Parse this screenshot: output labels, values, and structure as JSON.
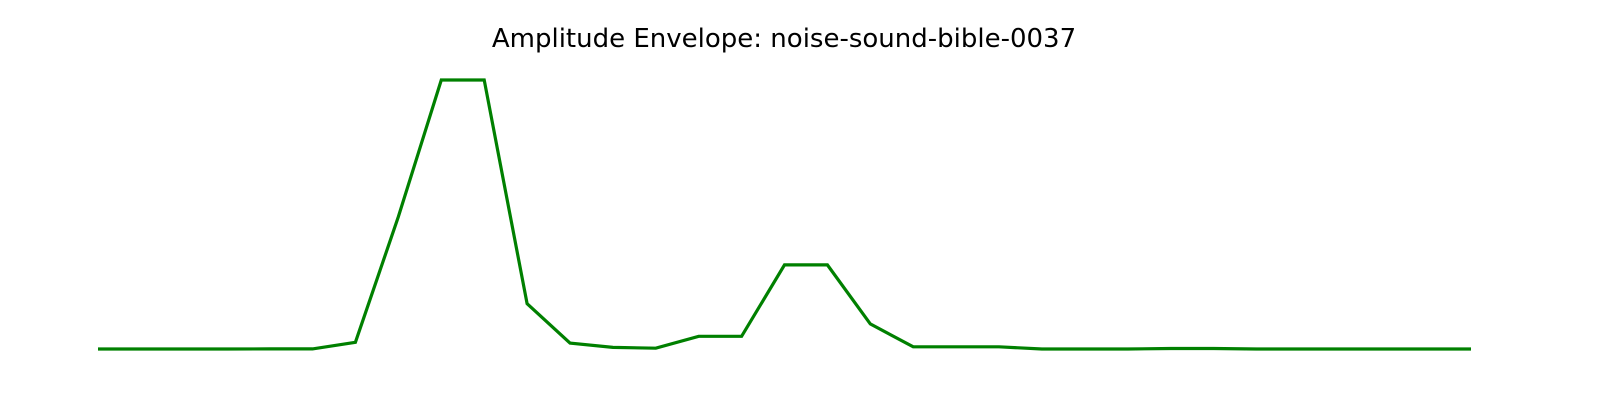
{
  "chart_data": {
    "type": "line",
    "title": "Amplitude Envelope: noise-sound-bible-0037",
    "xlabel": "",
    "ylabel": "",
    "grid": false,
    "axes_visible": false,
    "line_color": "#008000",
    "x": [
      0,
      1,
      2,
      3,
      4,
      5,
      6,
      7,
      8,
      9,
      10,
      11,
      12,
      13,
      14,
      15,
      16,
      17,
      18,
      19,
      20,
      21,
      22,
      23,
      24,
      25,
      26,
      27,
      28,
      29,
      30,
      31,
      32
    ],
    "series": [
      {
        "values": [
          0.0,
          0.0,
          0.0,
          0.0,
          0.0005,
          0.0005,
          0.025,
          0.49,
          0.998,
          0.998,
          0.168,
          0.022,
          0.006,
          0.003,
          0.047,
          0.047,
          0.312,
          0.312,
          0.093,
          0.008,
          0.008,
          0.008,
          0.0,
          0.0,
          0.0,
          0.002,
          0.002,
          0.0,
          0.0,
          0.0,
          0.0,
          0.0,
          0.0
        ]
      }
    ],
    "ylim": [
      -0.04,
      1.04
    ],
    "xlim": [
      -0.3,
      32.3
    ]
  }
}
